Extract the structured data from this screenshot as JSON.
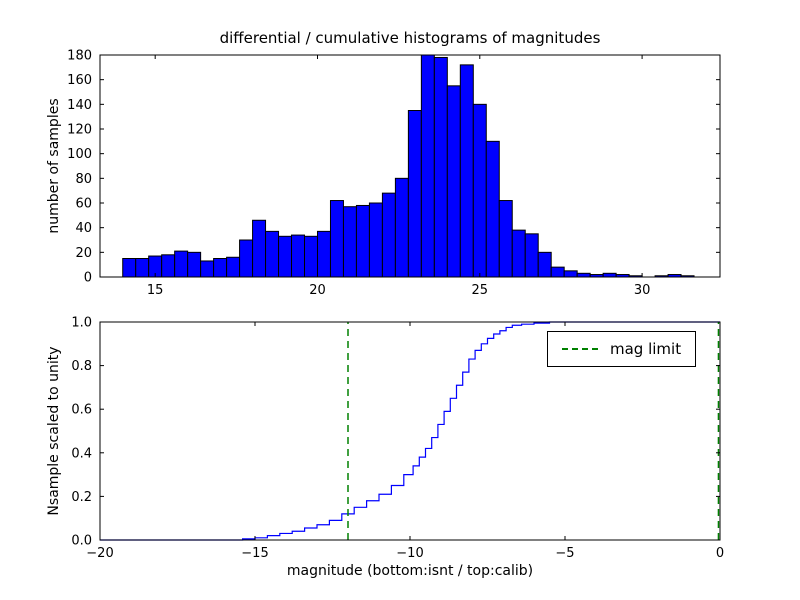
{
  "figure": {
    "title": "differential / cumulative histograms of magnitudes",
    "xlabel": "magnitude (bottom:isnt / top:calib)",
    "background": "#ffffff"
  },
  "chart_data": [
    {
      "type": "bar",
      "name": "differential-histogram",
      "ylabel": "number of samples",
      "bar_color": "#0000ff",
      "edge_color": "#000000",
      "bin_start": 14.0,
      "bin_width": 0.4,
      "values": [
        15,
        15,
        17,
        18,
        21,
        20,
        13,
        15,
        16,
        30,
        46,
        37,
        33,
        34,
        33,
        37,
        62,
        57,
        58,
        60,
        68,
        80,
        135,
        180,
        178,
        155,
        172,
        140,
        110,
        62,
        38,
        35,
        20,
        8,
        5,
        3,
        2,
        3,
        2,
        1,
        0,
        1,
        2,
        1
      ],
      "xlim": [
        13.3,
        32.4
      ],
      "ylim": [
        0,
        180
      ],
      "xticks": [
        15,
        20,
        25,
        30
      ],
      "xtick_labels": [
        "15",
        "20",
        "25",
        "30"
      ],
      "yticks": [
        0,
        20,
        40,
        60,
        80,
        100,
        120,
        140,
        160,
        180
      ],
      "ytick_labels": [
        "0",
        "20",
        "40",
        "60",
        "80",
        "100",
        "120",
        "140",
        "160",
        "180"
      ],
      "grid": false
    },
    {
      "type": "line",
      "name": "cumulative-histogram",
      "ylabel": "Nsample scaled to unity",
      "line_color": "#0000ff",
      "step": true,
      "x": [
        -20,
        -15.4,
        -15.0,
        -14.6,
        -14.2,
        -13.8,
        -13.4,
        -13.0,
        -12.6,
        -12.2,
        -11.8,
        -11.4,
        -11.0,
        -10.6,
        -10.2,
        -9.9,
        -9.7,
        -9.5,
        -9.3,
        -9.1,
        -8.9,
        -8.7,
        -8.5,
        -8.3,
        -8.1,
        -7.9,
        -7.7,
        -7.5,
        -7.3,
        -7.1,
        -6.9,
        -6.7,
        -6.4,
        -6.0,
        -5.5,
        0
      ],
      "y": [
        0,
        0.005,
        0.01,
        0.02,
        0.03,
        0.04,
        0.055,
        0.07,
        0.09,
        0.12,
        0.15,
        0.18,
        0.21,
        0.25,
        0.3,
        0.34,
        0.38,
        0.42,
        0.47,
        0.53,
        0.59,
        0.65,
        0.71,
        0.77,
        0.83,
        0.87,
        0.9,
        0.925,
        0.945,
        0.96,
        0.975,
        0.985,
        0.99,
        0.995,
        1.0,
        1.0
      ],
      "xlim": [
        -20,
        0
      ],
      "ylim": [
        0,
        1.0
      ],
      "xticks": [
        -20,
        -15,
        -10,
        -5,
        0
      ],
      "xtick_labels": [
        "−20",
        "−15",
        "−10",
        "−5",
        "0"
      ],
      "yticks": [
        0,
        0.2,
        0.4,
        0.6,
        0.8,
        1.0
      ],
      "ytick_labels": [
        "0.0",
        "0.2",
        "0.4",
        "0.6",
        "0.8",
        "1.0"
      ],
      "vlines": [
        {
          "x": -12,
          "color": "#008000",
          "style": "dashed",
          "label": "mag limit"
        },
        {
          "x": -0.05,
          "color": "#008000",
          "style": "dashed",
          "label": ""
        }
      ],
      "legend": {
        "label": "mag limit",
        "color": "#008000",
        "style": "dashed",
        "position": "upper right"
      },
      "grid": false
    }
  ]
}
